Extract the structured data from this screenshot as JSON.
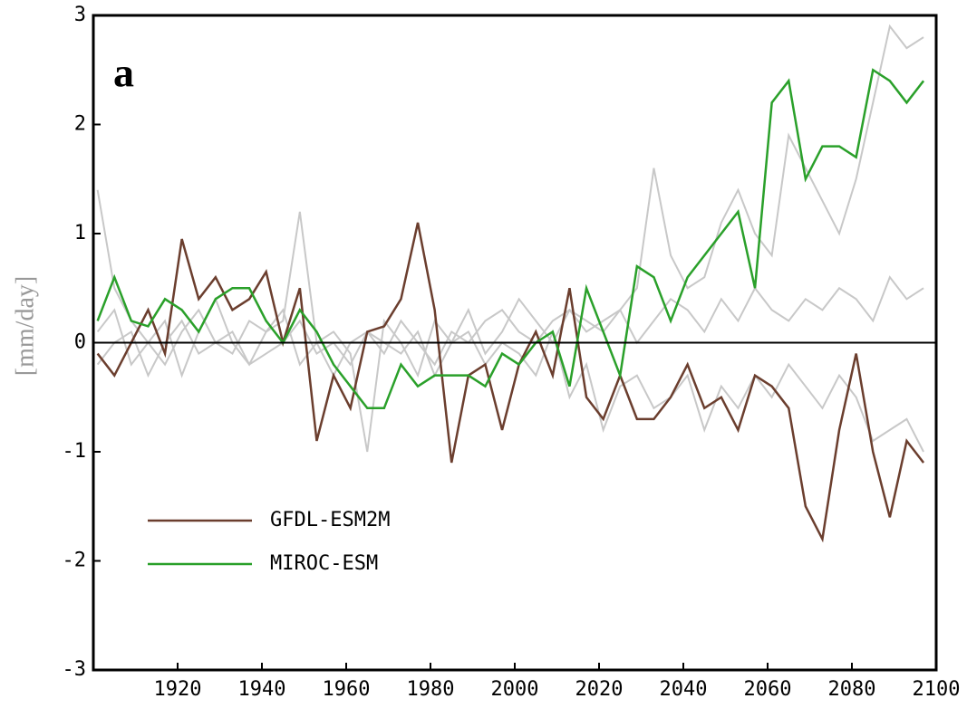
{
  "chart_data": {
    "type": "line",
    "panel_label": "a",
    "y_label": "[mm/day]",
    "x": [
      1901,
      1905,
      1909,
      1913,
      1917,
      1921,
      1925,
      1929,
      1933,
      1937,
      1941,
      1945,
      1949,
      1953,
      1957,
      1961,
      1965,
      1969,
      1973,
      1977,
      1981,
      1985,
      1989,
      1993,
      1997,
      2001,
      2005,
      2009,
      2013,
      2017,
      2021,
      2025,
      2029,
      2033,
      2037,
      2041,
      2045,
      2049,
      2053,
      2057,
      2061,
      2065,
      2069,
      2073,
      2077,
      2081,
      2085,
      2089,
      2093,
      2097
    ],
    "series": [
      {
        "color": "#c8c8c8",
        "values": [
          1.4,
          0.5,
          0.2,
          0.0,
          -0.2,
          0.1,
          0.3,
          0.0,
          -0.1,
          0.2,
          0.1,
          0.2,
          1.2,
          0.0,
          -0.3,
          0.0,
          0.1,
          -0.1,
          0.2,
          0.0,
          -0.2,
          0.1,
          0.0,
          0.2,
          0.3,
          0.1,
          0.0,
          0.2,
          0.3,
          0.1,
          0.2,
          0.3,
          0.5,
          1.6,
          0.8,
          0.5,
          0.6,
          1.1,
          1.4,
          1.0,
          0.8,
          1.9,
          1.6,
          1.3,
          1.0,
          1.5,
          2.2,
          2.9,
          2.7,
          2.8
        ]
      },
      {
        "color": "#c8c8c8",
        "values": [
          0.1,
          0.3,
          -0.2,
          0.0,
          0.2,
          -0.3,
          0.1,
          0.4,
          0.0,
          -0.2,
          0.1,
          0.3,
          -0.2,
          0.0,
          0.1,
          -0.1,
          -1.0,
          0.2,
          0.0,
          -0.3,
          0.2,
          0.0,
          0.3,
          -0.1,
          0.1,
          0.4,
          0.2,
          0.0,
          0.3,
          0.2,
          0.1,
          0.3,
          0.0,
          0.2,
          0.4,
          0.3,
          0.1,
          0.4,
          0.2,
          0.5,
          0.3,
          0.2,
          0.4,
          0.3,
          0.5,
          0.4,
          0.2,
          0.6,
          0.4,
          0.5
        ]
      },
      {
        "color": "#c8c8c8",
        "values": [
          -0.2,
          0.0,
          0.1,
          -0.3,
          0.0,
          0.2,
          -0.1,
          0.0,
          0.1,
          -0.2,
          -0.1,
          0.0,
          0.2,
          -0.1,
          0.0,
          -0.2,
          0.1,
          0.0,
          -0.1,
          0.1,
          -0.3,
          0.0,
          0.1,
          -0.2,
          0.0,
          -0.1,
          -0.3,
          0.1,
          -0.5,
          -0.2,
          -0.8,
          -0.4,
          -0.3,
          -0.6,
          -0.5,
          -0.3,
          -0.8,
          -0.4,
          -0.6,
          -0.3,
          -0.5,
          -0.2,
          -0.4,
          -0.6,
          -0.3,
          -0.5,
          -0.9,
          -0.8,
          -0.7,
          -1.0
        ]
      },
      {
        "name": "GFDL-ESM2M",
        "color": "#6b3e2e",
        "values": [
          -0.1,
          -0.3,
          0.0,
          0.3,
          -0.1,
          0.95,
          0.4,
          0.6,
          0.3,
          0.4,
          0.65,
          0.0,
          0.5,
          -0.9,
          -0.3,
          -0.6,
          0.1,
          0.15,
          0.4,
          1.1,
          0.3,
          -1.1,
          -0.3,
          -0.2,
          -0.8,
          -0.2,
          0.1,
          -0.3,
          0.5,
          -0.5,
          -0.7,
          -0.3,
          -0.7,
          -0.7,
          -0.5,
          -0.2,
          -0.6,
          -0.5,
          -0.8,
          -0.3,
          -0.4,
          -0.6,
          -1.5,
          -1.8,
          -0.8,
          -0.1,
          -1.0,
          -1.6,
          -0.9,
          -1.1
        ]
      },
      {
        "name": "MIROC-ESM",
        "color": "#2aa02a",
        "values": [
          0.2,
          0.6,
          0.2,
          0.15,
          0.4,
          0.3,
          0.1,
          0.4,
          0.5,
          0.5,
          0.2,
          0.0,
          0.3,
          0.1,
          -0.2,
          -0.4,
          -0.6,
          -0.6,
          -0.2,
          -0.4,
          -0.3,
          -0.3,
          -0.3,
          -0.4,
          -0.1,
          -0.2,
          0.0,
          0.1,
          -0.4,
          0.5,
          0.1,
          -0.3,
          0.7,
          0.6,
          0.2,
          0.6,
          0.8,
          1.0,
          1.2,
          0.5,
          2.2,
          2.4,
          1.5,
          1.8,
          1.8,
          1.7,
          2.5,
          2.4,
          2.2,
          2.4
        ]
      }
    ],
    "xlim": [
      1900,
      2100
    ],
    "xticks": [
      1920,
      1940,
      1960,
      1980,
      2000,
      2020,
      2040,
      2060,
      2080,
      2100
    ],
    "ylim": [
      -3,
      3
    ],
    "yticks": [
      -3,
      -2,
      -1,
      0,
      1,
      2,
      3
    ],
    "legend": "lower left"
  }
}
